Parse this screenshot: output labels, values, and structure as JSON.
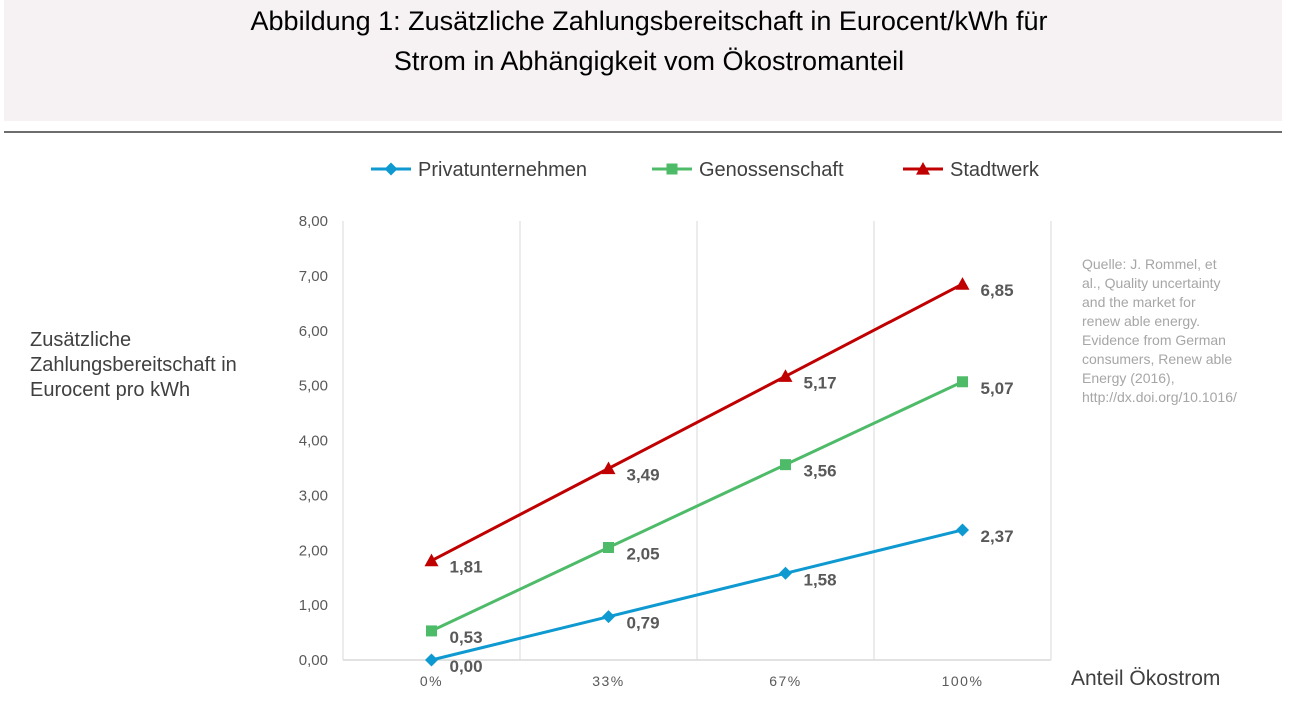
{
  "title": {
    "line1": "Abbildung 1: Zusätzliche Zahlungsbereitschaft in Eurocent/kWh für",
    "line2": "Strom in Abhängigkeit vom Ökostromanteil"
  },
  "source_lines": [
    "Quelle: J. Rommel,  et",
    "al., Quality uncertainty",
    "and the market for",
    "renew able energy.",
    "Evidence from German",
    "consumers, Renew able",
    "Energy (2016),",
    "http://dx.doi.org/10.1016/"
  ],
  "chart_data": {
    "type": "line",
    "title": "",
    "xlabel": "Anteil Ökostrom",
    "ylabel": "Zusätzliche Zahlungsbereitschaft in Eurocent pro kWh",
    "ylabel_lines": [
      "Zusätzliche",
      "Zahlungsbereitschaft in",
      "Eurocent pro kWh"
    ],
    "categories": [
      "0%",
      "33%",
      "67%",
      "100%"
    ],
    "ylim": [
      0,
      8
    ],
    "yticks": [
      "0,00",
      "1,00",
      "2,00",
      "3,00",
      "4,00",
      "5,00",
      "6,00",
      "7,00",
      "8,00"
    ],
    "grid": "vertical",
    "legend": "top-center",
    "series": [
      {
        "name": "Privatunternehmen",
        "color": "#0e9ad0",
        "marker": "diamond",
        "values": [
          0.0,
          0.79,
          1.58,
          2.37
        ],
        "labels": [
          "0,00",
          "0,79",
          "1,58",
          "2,37"
        ]
      },
      {
        "name": "Genossenschaft",
        "color": "#4ebb69",
        "marker": "square",
        "values": [
          0.53,
          2.05,
          3.56,
          5.07
        ],
        "labels": [
          "0,53",
          "2,05",
          "3,56",
          "5,07"
        ]
      },
      {
        "name": "Stadtwerk",
        "color": "#c00000",
        "marker": "triangle",
        "values": [
          1.81,
          3.49,
          5.17,
          6.85
        ],
        "labels": [
          "1,81",
          "3,49",
          "5,17",
          "6,85"
        ]
      }
    ]
  }
}
